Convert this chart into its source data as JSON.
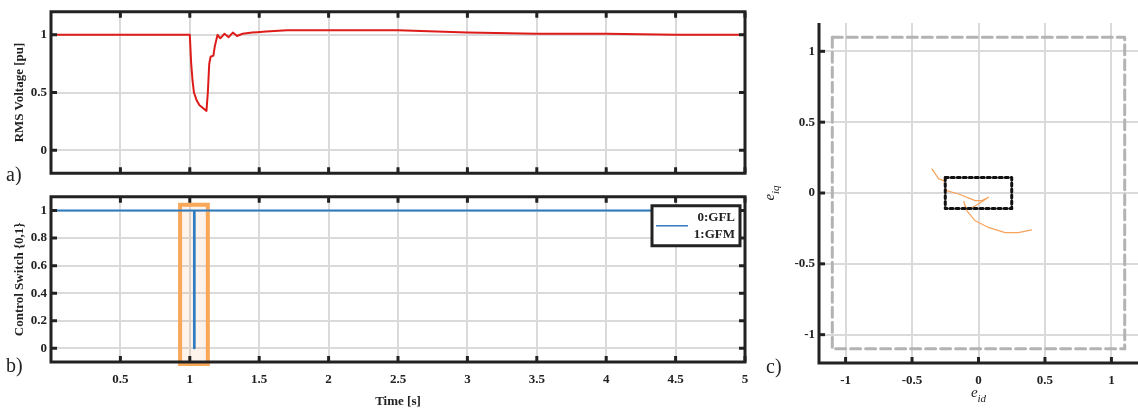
{
  "chart_data": [
    {
      "type": "line",
      "ylabel": "RMS Voltage [pu]",
      "annotations": [
        "a)"
      ],
      "xlim": [
        0,
        5
      ],
      "xticks": [
        0.5,
        1,
        1.5,
        2,
        2.5,
        3,
        3.5,
        4,
        4.5,
        5
      ],
      "ylim": [
        -0.2,
        1.2
      ],
      "yticks": [
        0,
        0.5,
        1
      ],
      "grid": true,
      "tick_labels": "y",
      "series": [
        {
          "color": "#dd1c1a",
          "x": [
            0,
            1.0,
            1.01,
            1.02,
            1.03,
            1.05,
            1.07,
            1.09,
            1.11,
            1.12,
            1.13,
            1.14,
            1.15,
            1.17,
            1.18,
            1.2,
            1.22,
            1.25,
            1.28,
            1.31,
            1.34,
            1.38,
            1.45,
            1.55,
            1.7,
            2.0,
            2.5,
            3.0,
            3.5,
            4.0,
            4.5,
            5.0
          ],
          "values": [
            1,
            1,
            0.75,
            0.6,
            0.5,
            0.43,
            0.39,
            0.37,
            0.35,
            0.34,
            0.5,
            0.75,
            0.81,
            0.82,
            0.9,
            1.0,
            0.97,
            1.01,
            0.98,
            1.02,
            0.99,
            1.01,
            1.02,
            1.03,
            1.04,
            1.04,
            1.04,
            1.02,
            1.01,
            1.01,
            1.0,
            1.0
          ]
        }
      ]
    },
    {
      "type": "line",
      "xlabel": "Time [s]",
      "ylabel": "Control Switch {0,1}",
      "annotations": [
        "b)"
      ],
      "xlim": [
        0,
        5
      ],
      "xticks": [
        0.5,
        1,
        1.5,
        2,
        2.5,
        3,
        3.5,
        4,
        4.5,
        5
      ],
      "ylim": [
        -0.1,
        1.1
      ],
      "yticks": [
        0,
        0.2,
        0.4,
        0.6,
        0.8,
        1
      ],
      "grid": true,
      "legend": "top right",
      "bands": [
        {
          "axis": "x",
          "from": 0.93,
          "to": 1.13,
          "color": "#f9a85a"
        }
      ],
      "series": [
        {
          "name": "0:GFL\n1:GFM",
          "color": "#2f7bbf",
          "x": [
            0,
            1.03,
            1.03,
            1.035,
            1.035,
            5
          ],
          "values": [
            1,
            1,
            0,
            0,
            1,
            1
          ]
        }
      ]
    },
    {
      "type": "line",
      "xlabel": "e$_{id}$",
      "ylabel": "e$_{iq}$",
      "annotations": [
        "c)"
      ],
      "xlim": [
        -1.2,
        1.2
      ],
      "xticks": [
        -1,
        -0.5,
        0,
        0.5,
        1
      ],
      "ylim": [
        -1.2,
        1.2
      ],
      "yticks": [
        -1,
        -0.5,
        0,
        0.5,
        1
      ],
      "grid": true,
      "series": [
        {
          "color": "#b3b3b3",
          "line_style": "dashed",
          "x": [
            -1.1,
            1.1,
            1.1
          ],
          "values": [
            1.1,
            1.1,
            -1.1
          ]
        },
        {
          "color": "#b3b3b3",
          "line_style": "dashed",
          "x": [
            -1.1,
            -1.1,
            1.1
          ],
          "values": [
            1.1,
            -1.1,
            -1.1
          ]
        },
        {
          "color": "#111111",
          "line_style": "dotted",
          "x": [
            -0.25,
            0.25,
            0.25
          ],
          "values": [
            0.11,
            0.11,
            -0.11
          ]
        },
        {
          "color": "#111111",
          "line_style": "dotted",
          "x": [
            -0.25,
            -0.25,
            0.25
          ],
          "values": [
            0.11,
            -0.11,
            -0.11
          ]
        },
        {
          "color": "#f7a35c",
          "x": [
            -0.35,
            -0.3,
            -0.26,
            -0.255,
            -0.24,
            -0.15,
            -0.025,
            0.025,
            0.075,
            0,
            -0.062,
            -0.1,
            -0.11,
            -0.088,
            -0.025,
            0.075,
            0.2,
            0.3,
            0.4
          ],
          "values": [
            0.17,
            0.1,
            0.087,
            0.05,
            0.017,
            -0.007,
            -0.054,
            -0.054,
            -0.03,
            -0.078,
            -0.109,
            -0.1,
            -0.06,
            -0.125,
            -0.196,
            -0.243,
            -0.28,
            -0.28,
            -0.26
          ]
        }
      ]
    }
  ]
}
